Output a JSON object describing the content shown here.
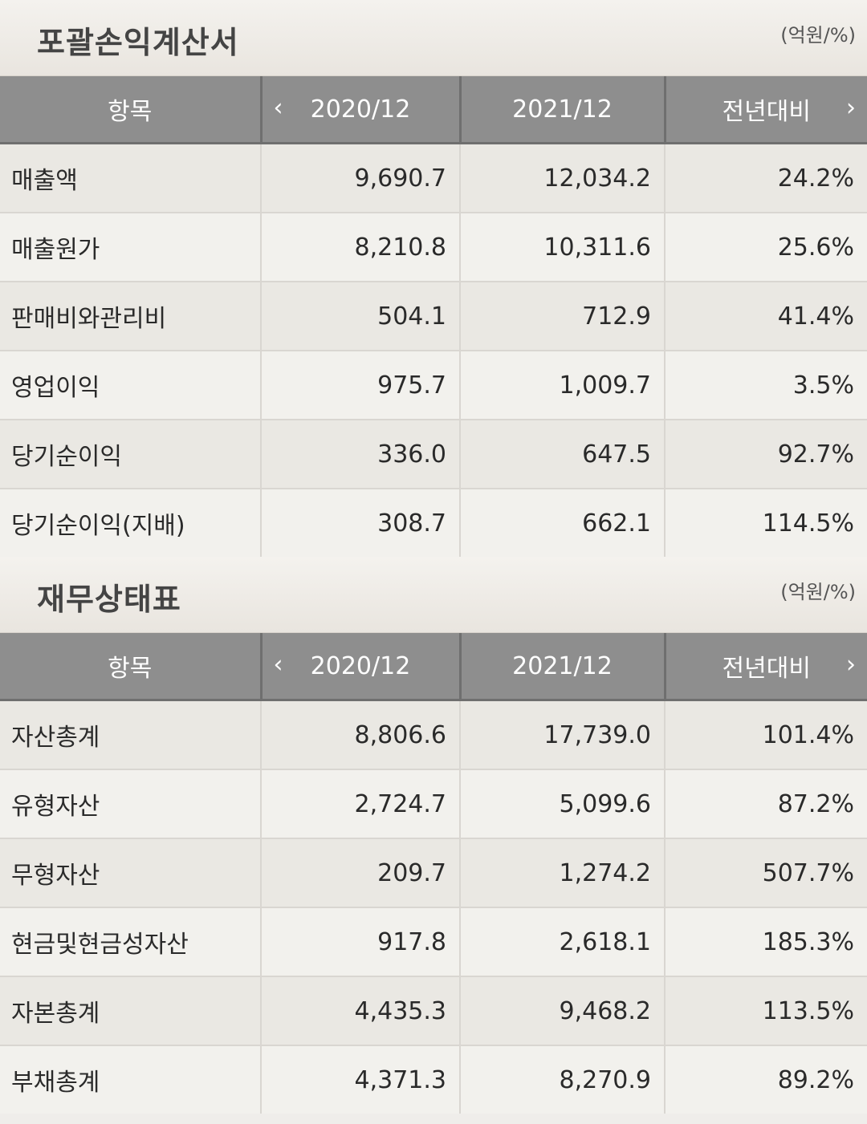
{
  "income": {
    "title": "포괄손익계산서",
    "unit": "(억원/%)",
    "headers": [
      "항목",
      "2020/12",
      "2021/12",
      "전년대비"
    ],
    "prev_arrow": "‹",
    "next_arrow": "›",
    "rows": [
      [
        "매출액",
        "9,690.7",
        "12,034.2",
        "24.2%"
      ],
      [
        "매출원가",
        "8,210.8",
        "10,311.6",
        "25.6%"
      ],
      [
        "판매비와관리비",
        "504.1",
        "712.9",
        "41.4%"
      ],
      [
        "영업이익",
        "975.7",
        "1,009.7",
        "3.5%"
      ],
      [
        "당기순이익",
        "336.0",
        "647.5",
        "92.7%"
      ],
      [
        "당기순이익(지배)",
        "308.7",
        "662.1",
        "114.5%"
      ]
    ]
  },
  "balance": {
    "title": "재무상태표",
    "unit": "(억원/%)",
    "headers": [
      "항목",
      "2020/12",
      "2021/12",
      "전년대비"
    ],
    "prev_arrow": "‹",
    "next_arrow": "›",
    "rows": [
      [
        "자산총계",
        "8,806.6",
        "17,739.0",
        "101.4%"
      ],
      [
        "유형자산",
        "2,724.7",
        "5,099.6",
        "87.2%"
      ],
      [
        "무형자산",
        "209.7",
        "1,274.2",
        "507.7%"
      ],
      [
        "현금및현금성자산",
        "917.8",
        "2,618.1",
        "185.3%"
      ],
      [
        "자본총계",
        "4,435.3",
        "9,468.2",
        "113.5%"
      ],
      [
        "부채총계",
        "4,371.3",
        "8,270.9",
        "89.2%"
      ]
    ]
  }
}
